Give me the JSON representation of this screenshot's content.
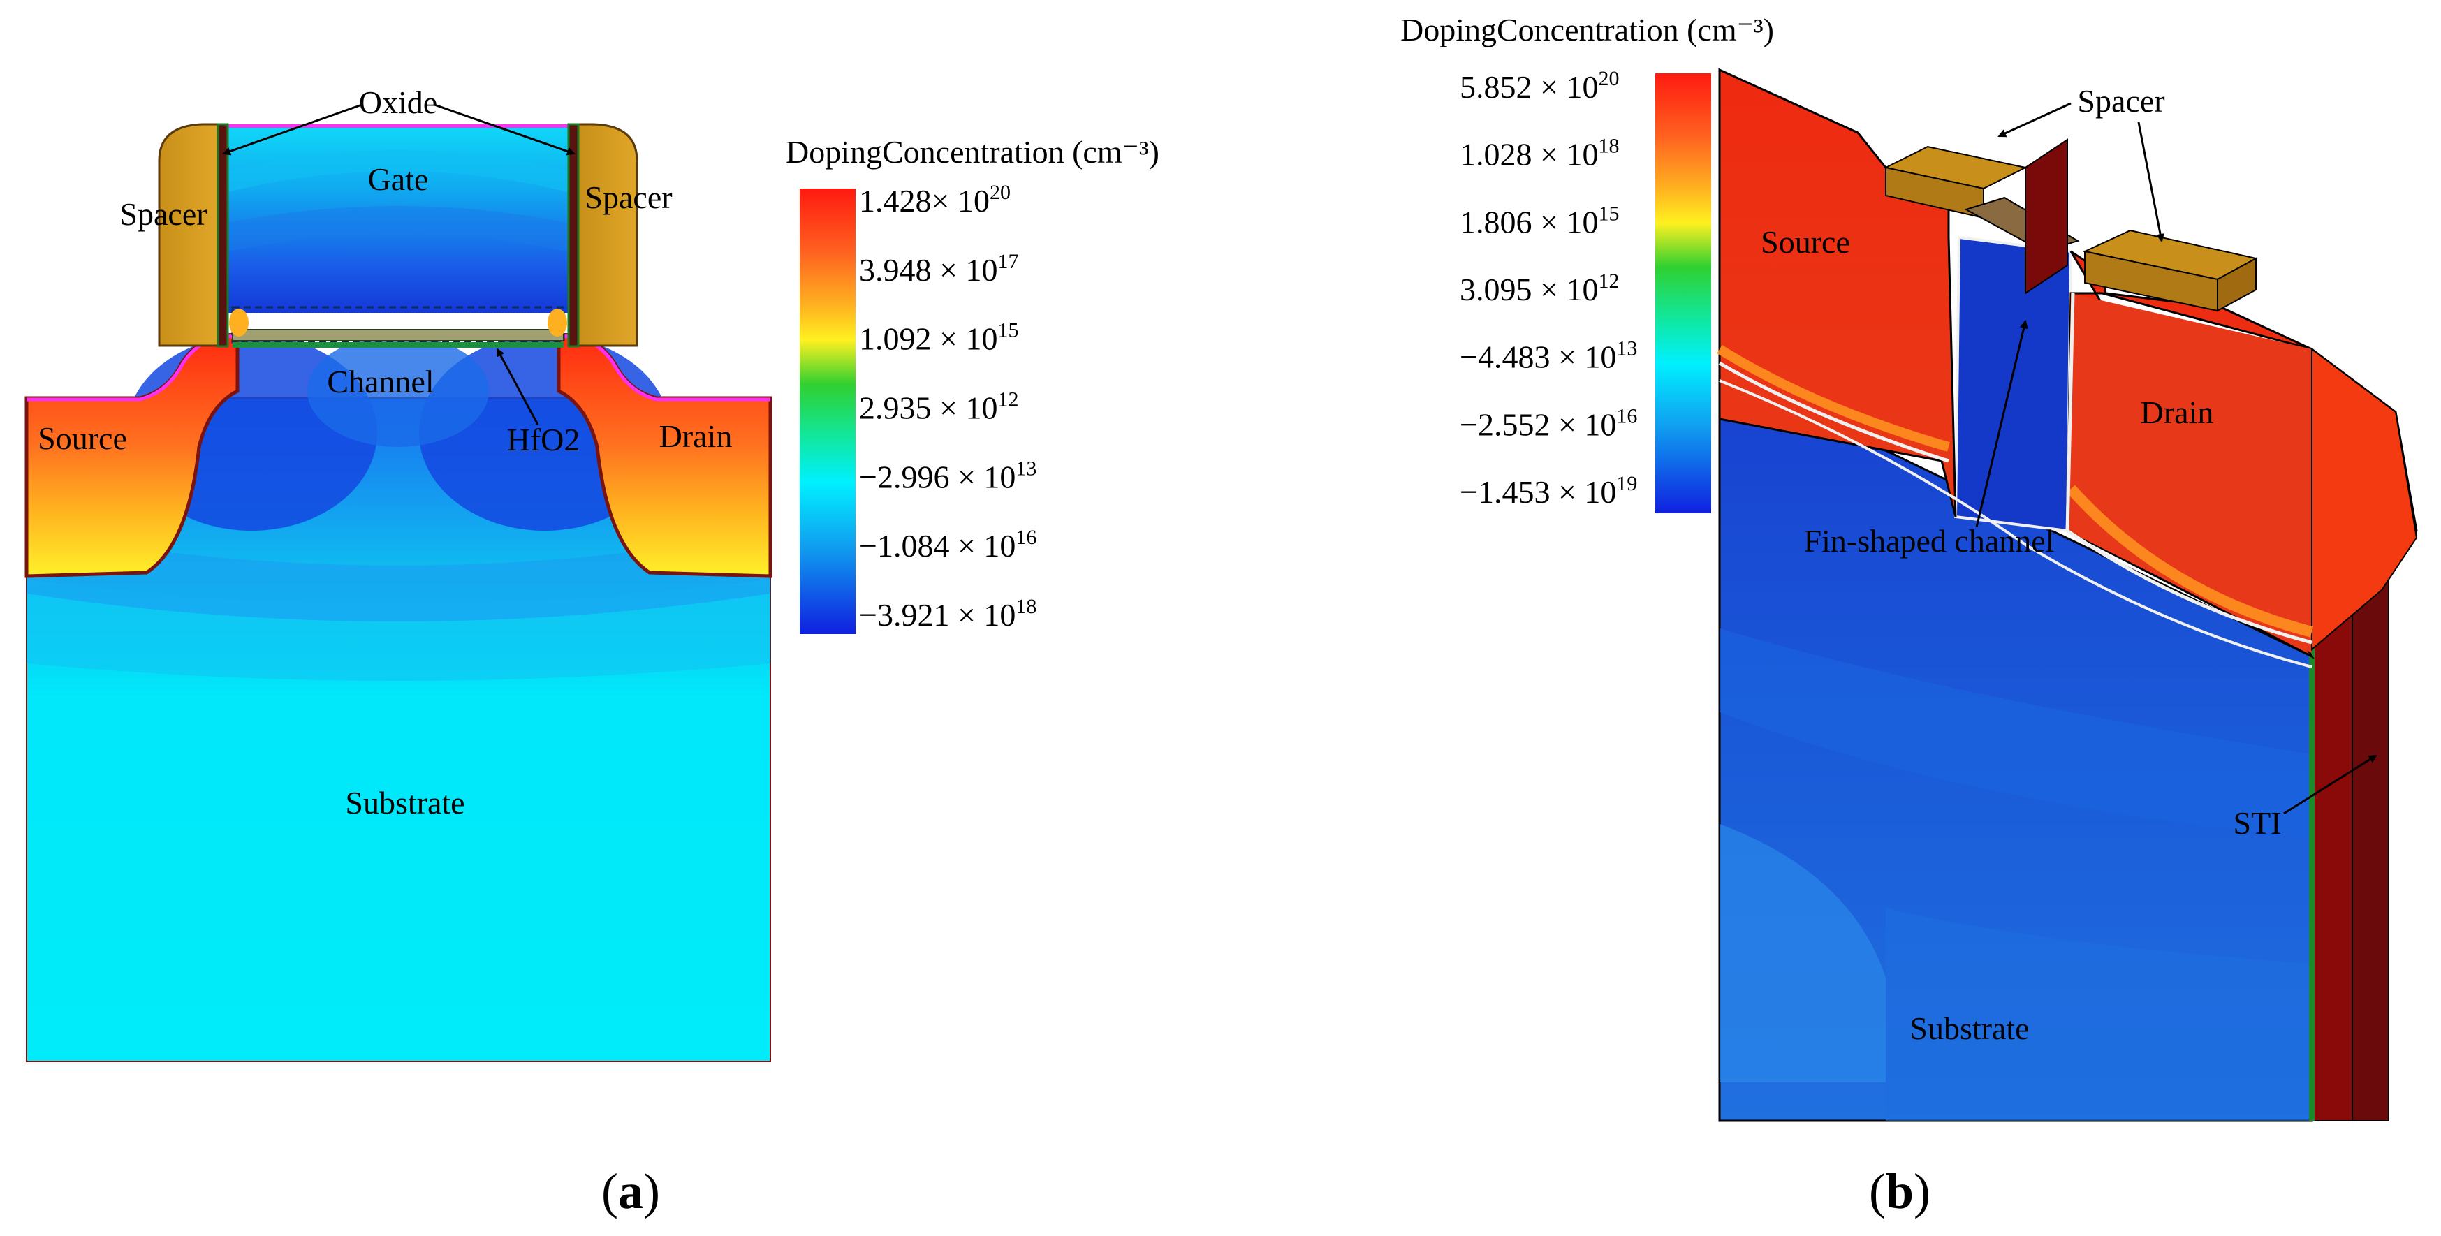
{
  "panel_a": {
    "labels": {
      "oxide": "Oxide",
      "gate": "Gate",
      "spacer_left": "Spacer",
      "spacer_right": "Spacer",
      "channel": "Channel",
      "hfo2": "HfO2",
      "source": "Source",
      "drain": "Drain",
      "substrate": "Substrate"
    },
    "legend": {
      "title": "DopingConcentration (cm⁻³)",
      "ticks": [
        {
          "mantissa": "1.428× 10",
          "exp": "20"
        },
        {
          "mantissa": "3.948 × 10",
          "exp": "17"
        },
        {
          "mantissa": "1.092 × 10",
          "exp": "15"
        },
        {
          "mantissa": "2.935 × 10",
          "exp": "12"
        },
        {
          "mantissa": "−2.996 × 10",
          "exp": "13"
        },
        {
          "mantissa": "−1.084 × 10",
          "exp": "16"
        },
        {
          "mantissa": "−3.921 × 10",
          "exp": "18"
        }
      ]
    },
    "caption": {
      "open": "(",
      "letter": "a",
      "close": ")"
    }
  },
  "panel_b": {
    "labels": {
      "spacer": "Spacer",
      "source": "Source",
      "drain": "Drain",
      "fin_channel": "Fin-shaped channel",
      "sti": "STI",
      "substrate": "Substrate"
    },
    "legend": {
      "title": "DopingConcentration (cm⁻³)",
      "ticks": [
        {
          "mantissa": "5.852 × 10",
          "exp": "20"
        },
        {
          "mantissa": "1.028 × 10",
          "exp": "18"
        },
        {
          "mantissa": "1.806 × 10",
          "exp": "15"
        },
        {
          "mantissa": "3.095 × 10",
          "exp": "12"
        },
        {
          "mantissa": "−4.483 × 10",
          "exp": "13"
        },
        {
          "mantissa": "−2.552 × 10",
          "exp": "16"
        },
        {
          "mantissa": "−1.453 × 10",
          "exp": "19"
        }
      ]
    },
    "caption": {
      "open": "(",
      "letter": "b",
      "close": ")"
    }
  },
  "colors": {
    "red": "#ff2a10",
    "orange": "#ff8a20",
    "yellow": "#ffe02a",
    "green": "#1ec832",
    "cyan": "#00e8f8",
    "light_blue": "#10b4f0",
    "blue": "#1c50e8",
    "deep_blue": "#1430d0",
    "spacer_gold": "#d49c1a",
    "sti_brown": "#8a0a0a",
    "outline": "#7a1410"
  }
}
